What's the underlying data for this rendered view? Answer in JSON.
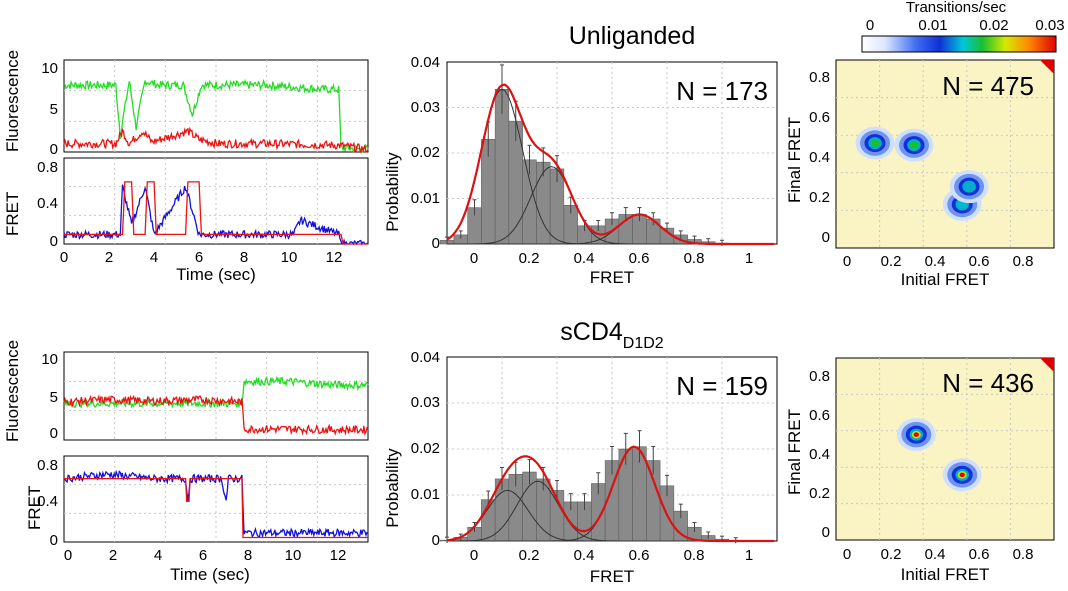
{
  "colors": {
    "green": "#22dd22",
    "red": "#ee1111",
    "blue": "#1111dd",
    "hist_fill": "#8a8a8a",
    "fit": "#dd1111",
    "tdp_bg": "#faf3c4"
  },
  "colorbar": {
    "title": "Transitions/sec",
    "ticks": [
      "0",
      "0.01",
      "0.02",
      "0.03"
    ],
    "range": [
      0,
      0.03
    ]
  },
  "rows": [
    {
      "title": "Unliganded",
      "title_sub": "",
      "fl_ylabel": "Fluorescence",
      "fr_ylabel": "FRET",
      "time_xlabel": "Time (sec)",
      "fl_yticks": [
        "0",
        "5",
        "10"
      ],
      "fr_yticks": [
        "0",
        "0.4",
        "0.8"
      ],
      "time_xticks": [
        "0",
        "2",
        "4",
        "6",
        "8",
        "10",
        "12"
      ],
      "hist_ylabel": "Probability",
      "hist_xlabel": "FRET",
      "hist_yticks": [
        "0",
        "0.01",
        "0.02",
        "0.03",
        "0.04"
      ],
      "hist_xticks": [
        "0",
        "0.2",
        "0.4",
        "0.6",
        "0.8",
        "1"
      ],
      "hist_n": "N = 173",
      "tdp_xlabel": "Initial FRET",
      "tdp_ylabel": "Final FRET",
      "tdp_ticks": [
        "0",
        "0.2",
        "0.4",
        "0.6",
        "0.8"
      ],
      "tdp_n": "N = 475"
    },
    {
      "title": "sCD4",
      "title_sub": "D1D2",
      "fl_ylabel": "Fluorescence",
      "fr_ylabel": "FRET",
      "time_xlabel": "Time (sec)",
      "fl_yticks": [
        "0",
        "5",
        "10"
      ],
      "fr_yticks": [
        "0",
        "0.4",
        "0.8"
      ],
      "time_xticks": [
        "0",
        "2",
        "4",
        "6",
        "8",
        "10",
        "12"
      ],
      "hist_ylabel": "Probability",
      "hist_xlabel": "FRET",
      "hist_yticks": [
        "0",
        "0.01",
        "0.02",
        "0.03",
        "0.04"
      ],
      "hist_xticks": [
        "0",
        "0.2",
        "0.4",
        "0.6",
        "0.8",
        "1"
      ],
      "hist_n": "N = 159",
      "tdp_xlabel": "Initial FRET",
      "tdp_ylabel": "Final FRET",
      "tdp_ticks": [
        "0",
        "0.2",
        "0.4",
        "0.6",
        "0.8"
      ],
      "tdp_n": "N = 436"
    }
  ],
  "chart_data": [
    {
      "type": "line",
      "panel": "unliganded-fluorescence-trace",
      "xlabel": "Time (sec)",
      "ylabel": "Fluorescence",
      "xlim": [
        0,
        13.5
      ],
      "ylim": [
        0,
        11
      ],
      "series": [
        {
          "color": "green",
          "x": [
            0,
            2.3,
            2.5,
            2.9,
            3.2,
            3.6,
            4.2,
            5.3,
            5.7,
            6.1,
            6.8,
            9.0,
            11.5,
            12.2,
            12.3,
            13.5
          ],
          "values": [
            8,
            8,
            2,
            8.5,
            3,
            8.5,
            8,
            8,
            4.5,
            8,
            8,
            8,
            7.5,
            7.5,
            0.5,
            0.3
          ]
        },
        {
          "color": "red",
          "x": [
            0,
            2.3,
            2.6,
            2.9,
            3.5,
            3.9,
            5.5,
            6.0,
            6.8,
            9.0,
            12.2,
            13.5
          ],
          "values": [
            1,
            1,
            2.5,
            1,
            2.5,
            1.2,
            2.5,
            1.5,
            1,
            1,
            0.8,
            0.3
          ]
        }
      ]
    },
    {
      "type": "line",
      "panel": "unliganded-fret-trace",
      "xlabel": "Time (sec)",
      "ylabel": "FRET",
      "xlim": [
        0,
        13.5
      ],
      "ylim": [
        0,
        0.9
      ],
      "series": [
        {
          "color": "blue",
          "x": [
            0,
            2.5,
            2.6,
            3.0,
            3.6,
            4.0,
            5.4,
            6.0,
            10.2,
            10.5,
            12.2,
            12.3,
            13.5
          ],
          "values": [
            0.1,
            0.1,
            0.6,
            0.2,
            0.6,
            0.1,
            0.6,
            0.1,
            0.1,
            0.25,
            0.1,
            0.0,
            0.0
          ]
        },
        {
          "color": "red",
          "x": [
            0,
            2.6,
            2.7,
            3.0,
            3.1,
            3.6,
            3.7,
            4.0,
            4.1,
            5.4,
            5.5,
            6.0,
            6.1,
            12.3,
            12.4,
            13.5
          ],
          "values": [
            0.1,
            0.1,
            0.65,
            0.65,
            0.1,
            0.1,
            0.65,
            0.65,
            0.1,
            0.1,
            0.65,
            0.65,
            0.1,
            0.1,
            0.0,
            0.0
          ]
        }
      ]
    },
    {
      "type": "bar",
      "panel": "unliganded-fret-histogram",
      "title": "Unliganded",
      "xlabel": "FRET",
      "ylabel": "Probability",
      "xlim": [
        -0.1,
        1.1
      ],
      "ylim": [
        0,
        0.04
      ],
      "x": [
        -0.1,
        -0.05,
        0.0,
        0.05,
        0.1,
        0.15,
        0.2,
        0.25,
        0.3,
        0.35,
        0.4,
        0.45,
        0.5,
        0.55,
        0.6,
        0.65,
        0.7,
        0.75,
        0.8,
        0.85,
        0.9,
        0.95,
        1.0
      ],
      "values": [
        0.0008,
        0.002,
        0.008,
        0.023,
        0.034,
        0.027,
        0.0185,
        0.018,
        0.0165,
        0.0085,
        0.004,
        0.004,
        0.0055,
        0.0065,
        0.0065,
        0.0055,
        0.0035,
        0.002,
        0.001,
        0.0005,
        0.0002,
        0.0,
        0.0
      ],
      "fit_peaks": [
        {
          "center": 0.1,
          "height": 0.034
        },
        {
          "center": 0.28,
          "height": 0.017
        },
        {
          "center": 0.6,
          "height": 0.0065
        }
      ],
      "annotation": "N = 173"
    },
    {
      "type": "heatmap",
      "panel": "unliganded-transition-density",
      "xlabel": "Initial FRET",
      "ylabel": "Final FRET",
      "xlim": [
        -0.05,
        0.9
      ],
      "ylim": [
        -0.05,
        0.9
      ],
      "blobs": [
        {
          "x": 0.12,
          "y": 0.48,
          "rate": 0.02
        },
        {
          "x": 0.29,
          "y": 0.47,
          "rate": 0.02
        },
        {
          "x": 0.5,
          "y": 0.17,
          "rate": 0.018
        },
        {
          "x": 0.53,
          "y": 0.26,
          "rate": 0.012
        }
      ],
      "annotation": "N = 475"
    },
    {
      "type": "line",
      "panel": "scd4-fluorescence-trace",
      "xlabel": "Time (sec)",
      "ylabel": "Fluorescence",
      "xlim": [
        0,
        13.5
      ],
      "ylim": [
        -1,
        11
      ],
      "series": [
        {
          "color": "green",
          "x": [
            0,
            2,
            4,
            6,
            7.9,
            8.0,
            10,
            12,
            13.5
          ],
          "values": [
            4,
            4,
            4,
            4,
            4,
            7,
            7,
            6.5,
            6.5
          ]
        },
        {
          "color": "red",
          "x": [
            0,
            2,
            4,
            6,
            7.9,
            8.0,
            10,
            12,
            13.5
          ],
          "values": [
            4.2,
            4.5,
            4.3,
            4.5,
            4.2,
            0.5,
            0.5,
            0.4,
            0.4
          ]
        }
      ]
    },
    {
      "type": "line",
      "panel": "scd4-fret-trace",
      "xlabel": "Time (sec)",
      "ylabel": "FRET",
      "xlim": [
        0,
        13.5
      ],
      "ylim": [
        -0.05,
        0.9
      ],
      "series": [
        {
          "color": "blue",
          "x": [
            0,
            2,
            4,
            5.4,
            5.5,
            5.6,
            7.0,
            7.2,
            7.3,
            7.9,
            8.0,
            10,
            12,
            13.5
          ],
          "values": [
            0.65,
            0.7,
            0.65,
            0.65,
            0.4,
            0.65,
            0.65,
            0.4,
            0.65,
            0.65,
            0.05,
            0.05,
            0.05,
            0.05
          ]
        },
        {
          "color": "red",
          "x": [
            0,
            5.4,
            5.45,
            5.55,
            5.6,
            7.9,
            7.95,
            13.5
          ],
          "values": [
            0.65,
            0.65,
            0.4,
            0.4,
            0.65,
            0.65,
            0.0,
            0.0
          ]
        }
      ]
    },
    {
      "type": "bar",
      "panel": "scd4-fret-histogram",
      "title": "sCD4 D1D2",
      "xlabel": "FRET",
      "ylabel": "Probability",
      "xlim": [
        -0.1,
        1.1
      ],
      "ylim": [
        0,
        0.04
      ],
      "x": [
        -0.1,
        -0.05,
        0.0,
        0.05,
        0.1,
        0.15,
        0.2,
        0.25,
        0.3,
        0.35,
        0.4,
        0.45,
        0.5,
        0.55,
        0.6,
        0.65,
        0.7,
        0.75,
        0.8,
        0.85,
        0.9,
        0.95,
        1.0
      ],
      "values": [
        0.0002,
        0.0008,
        0.003,
        0.009,
        0.0135,
        0.0145,
        0.015,
        0.0135,
        0.011,
        0.0085,
        0.0085,
        0.0125,
        0.0175,
        0.02,
        0.0205,
        0.0175,
        0.012,
        0.0065,
        0.003,
        0.0012,
        0.0004,
        0.0001,
        0.0
      ],
      "fit_peaks": [
        {
          "center": 0.12,
          "height": 0.011
        },
        {
          "center": 0.23,
          "height": 0.013
        },
        {
          "center": 0.58,
          "height": 0.0205
        }
      ],
      "annotation": "N = 159"
    },
    {
      "type": "heatmap",
      "panel": "scd4-transition-density",
      "xlabel": "Initial FRET",
      "ylabel": "Final FRET",
      "xlim": [
        -0.05,
        0.9
      ],
      "ylim": [
        -0.05,
        0.9
      ],
      "blobs": [
        {
          "x": 0.3,
          "y": 0.5,
          "rate": 0.03
        },
        {
          "x": 0.5,
          "y": 0.29,
          "rate": 0.03
        }
      ],
      "annotation": "N = 436"
    }
  ]
}
